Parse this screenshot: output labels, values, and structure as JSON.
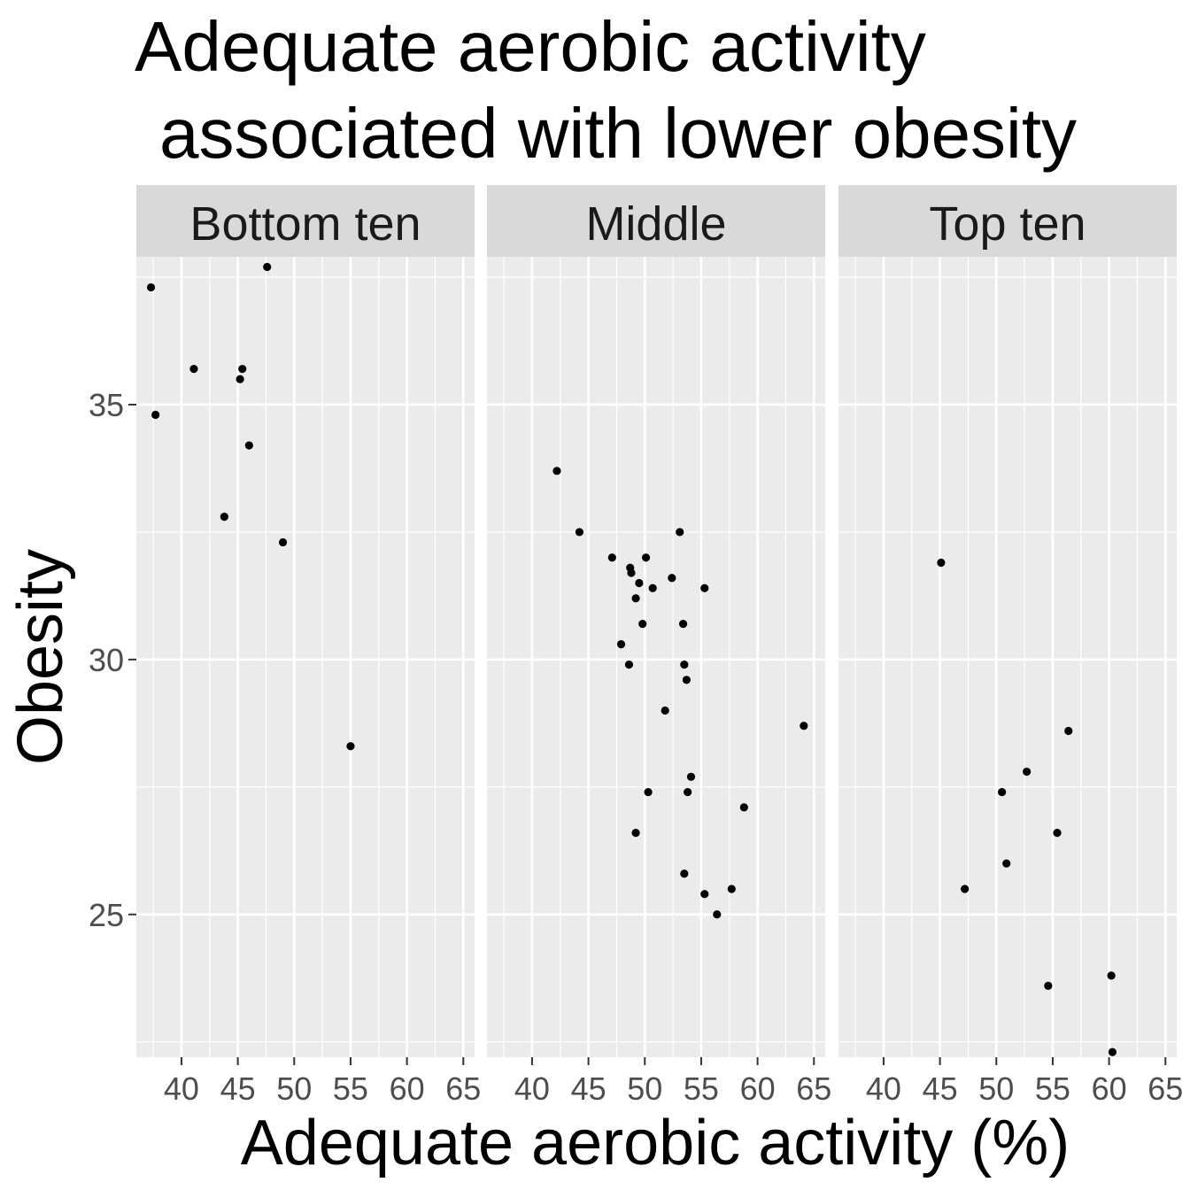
{
  "colors": {
    "panel_background": "#ebebeb",
    "strip_background": "#d9d9d9",
    "grid": "#ffffff",
    "point": "#000000",
    "tick": "#333333"
  },
  "chart_data": {
    "type": "scatter",
    "title_lines": [
      "Adequate aerobic activity",
      "associated with lower obesity"
    ],
    "xlabel": "Adequate aerobic activity (%)",
    "ylabel": "Obesity",
    "xlim": [
      36,
      66
    ],
    "ylim": [
      22.2,
      37.9
    ],
    "x_ticks": [
      40,
      45,
      50,
      55,
      60,
      65
    ],
    "y_ticks": [
      25,
      30,
      35
    ],
    "grid": true,
    "facets": [
      {
        "label": "Bottom ten",
        "points": [
          {
            "x": 37.3,
            "y": 37.3
          },
          {
            "x": 47.6,
            "y": 37.7
          },
          {
            "x": 37.7,
            "y": 34.8
          },
          {
            "x": 41.1,
            "y": 35.7
          },
          {
            "x": 45.4,
            "y": 35.7
          },
          {
            "x": 45.2,
            "y": 35.5
          },
          {
            "x": 46.0,
            "y": 34.2
          },
          {
            "x": 43.8,
            "y": 32.8
          },
          {
            "x": 49.0,
            "y": 32.3
          },
          {
            "x": 55.0,
            "y": 28.3
          }
        ]
      },
      {
        "label": "Middle",
        "points": [
          {
            "x": 42.2,
            "y": 33.7
          },
          {
            "x": 44.2,
            "y": 32.5
          },
          {
            "x": 47.1,
            "y": 32.0
          },
          {
            "x": 48.7,
            "y": 31.8
          },
          {
            "x": 48.8,
            "y": 31.7
          },
          {
            "x": 49.5,
            "y": 31.5
          },
          {
            "x": 50.1,
            "y": 32.0
          },
          {
            "x": 53.1,
            "y": 32.5
          },
          {
            "x": 52.4,
            "y": 31.6
          },
          {
            "x": 50.7,
            "y": 31.4
          },
          {
            "x": 55.3,
            "y": 31.4
          },
          {
            "x": 49.2,
            "y": 31.2
          },
          {
            "x": 49.8,
            "y": 30.7
          },
          {
            "x": 53.4,
            "y": 30.7
          },
          {
            "x": 47.9,
            "y": 30.3
          },
          {
            "x": 48.6,
            "y": 29.9
          },
          {
            "x": 53.5,
            "y": 29.9
          },
          {
            "x": 53.7,
            "y": 29.6
          },
          {
            "x": 51.8,
            "y": 29.0
          },
          {
            "x": 64.1,
            "y": 28.7
          },
          {
            "x": 54.1,
            "y": 27.7
          },
          {
            "x": 50.3,
            "y": 27.4
          },
          {
            "x": 53.8,
            "y": 27.4
          },
          {
            "x": 58.8,
            "y": 27.1
          },
          {
            "x": 49.2,
            "y": 26.6
          },
          {
            "x": 53.5,
            "y": 25.8
          },
          {
            "x": 57.7,
            "y": 25.5
          },
          {
            "x": 55.3,
            "y": 25.4
          },
          {
            "x": 56.4,
            "y": 25.0
          }
        ]
      },
      {
        "label": "Top ten",
        "points": [
          {
            "x": 45.1,
            "y": 31.9
          },
          {
            "x": 56.4,
            "y": 28.6
          },
          {
            "x": 52.7,
            "y": 27.8
          },
          {
            "x": 50.5,
            "y": 27.4
          },
          {
            "x": 55.4,
            "y": 26.6
          },
          {
            "x": 50.9,
            "y": 26.0
          },
          {
            "x": 47.2,
            "y": 25.5
          },
          {
            "x": 54.6,
            "y": 23.6
          },
          {
            "x": 60.2,
            "y": 23.8
          },
          {
            "x": 60.3,
            "y": 22.3
          }
        ]
      }
    ]
  }
}
